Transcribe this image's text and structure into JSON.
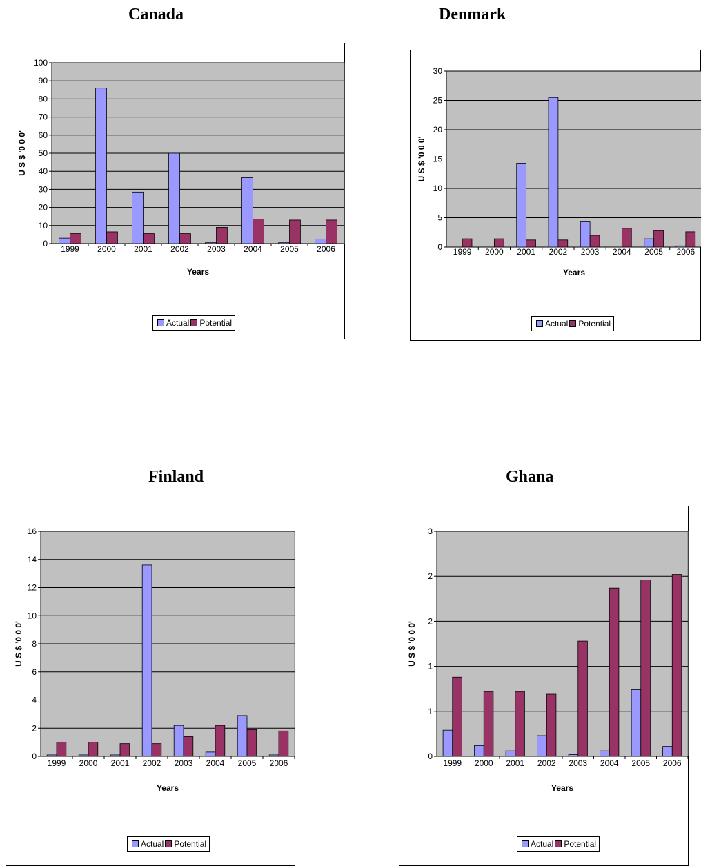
{
  "colors": {
    "actual": "#9999FF",
    "potential": "#993366",
    "plot_bg": "#C0C0C0",
    "grid": "#000000"
  },
  "legend": {
    "actual": "Actual",
    "potential": "Potential"
  },
  "chart_data": [
    {
      "type": "bar",
      "title": "Canada",
      "xlabel": "Years",
      "ylabel": "U S $ '0 0 0'",
      "categories": [
        "1999",
        "2000",
        "2001",
        "2002",
        "2003",
        "2004",
        "2005",
        "2006"
      ],
      "yticks": [
        "0",
        "10",
        "20",
        "30",
        "40",
        "50",
        "60",
        "70",
        "80",
        "90",
        "100"
      ],
      "ylim": [
        0,
        100
      ],
      "series": [
        {
          "name": "Actual",
          "values": [
            3,
            86,
            28.5,
            50,
            0.5,
            36.5,
            0.5,
            2.5
          ]
        },
        {
          "name": "Potential",
          "values": [
            5.5,
            6.5,
            5.5,
            5.5,
            9,
            13.5,
            13,
            13
          ]
        }
      ],
      "grid": true,
      "legend": "bottom"
    },
    {
      "type": "bar",
      "title": "Denmark",
      "xlabel": "Years",
      "ylabel": "U S $ '0 0 0'",
      "categories": [
        "1999",
        "2000",
        "2001",
        "2002",
        "2003",
        "2004",
        "2005",
        "2006"
      ],
      "yticks": [
        "0",
        "5",
        "10",
        "15",
        "20",
        "25",
        "30"
      ],
      "ylim": [
        0,
        30
      ],
      "series": [
        {
          "name": "Actual",
          "values": [
            0,
            0,
            14.3,
            25.5,
            4.4,
            0,
            1.4,
            0.2
          ]
        },
        {
          "name": "Potential",
          "values": [
            1.4,
            1.4,
            1.2,
            1.2,
            2,
            3.2,
            2.8,
            2.6
          ]
        }
      ],
      "grid": true,
      "legend": "bottom"
    },
    {
      "type": "bar",
      "title": "Finland",
      "xlabel": "Years",
      "ylabel": "U S $ '0 0 0'",
      "categories": [
        "1999",
        "2000",
        "2001",
        "2002",
        "2003",
        "2004",
        "2005",
        "2006"
      ],
      "yticks": [
        "0",
        "2",
        "4",
        "6",
        "8",
        "10",
        "12",
        "14",
        "16"
      ],
      "ylim": [
        0,
        16
      ],
      "series": [
        {
          "name": "Actual",
          "values": [
            0.1,
            0.1,
            0.1,
            13.6,
            2.2,
            0.3,
            2.9,
            0.1
          ]
        },
        {
          "name": "Potential",
          "values": [
            1,
            1,
            0.9,
            0.9,
            1.4,
            2.2,
            1.9,
            1.8
          ]
        }
      ],
      "grid": true,
      "legend": "bottom"
    },
    {
      "type": "bar",
      "title": "Ghana",
      "xlabel": "Years",
      "ylabel": "U S $ '0 0 0'",
      "categories": [
        "1999",
        "2000",
        "2001",
        "2002",
        "2003",
        "2004",
        "2005",
        "2006"
      ],
      "yticks": [
        "0",
        "1",
        "1",
        "2",
        "2",
        "3"
      ],
      "ylim": [
        0,
        2.5
      ],
      "series": [
        {
          "name": "Actual",
          "values": [
            0.29,
            0.12,
            0.06,
            0.23,
            0.02,
            0.06,
            0.74,
            0.11
          ]
        },
        {
          "name": "Potential",
          "values": [
            0.88,
            0.72,
            0.72,
            0.69,
            1.28,
            1.87,
            1.96,
            2.02
          ]
        }
      ],
      "grid": true,
      "legend": "bottom"
    }
  ]
}
